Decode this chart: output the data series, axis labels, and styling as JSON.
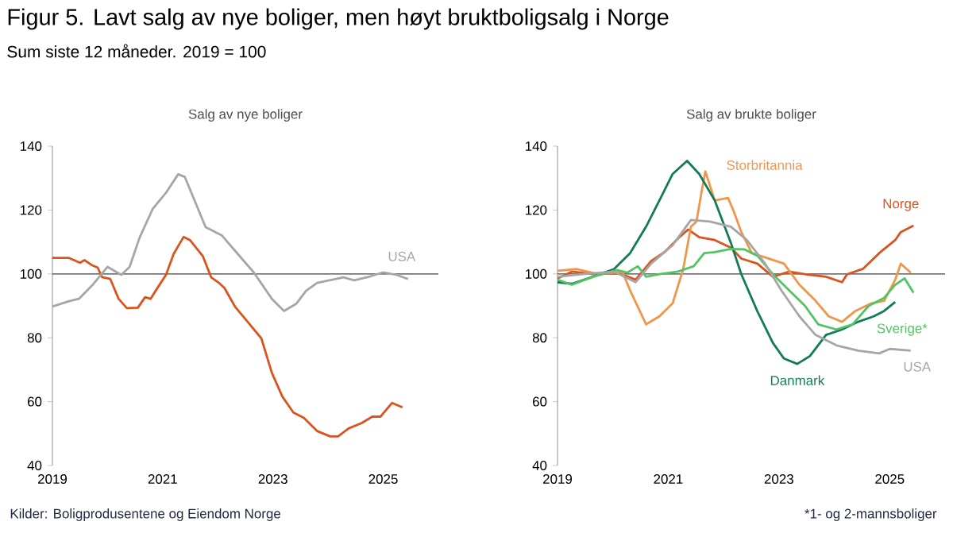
{
  "chart_data": [
    {
      "type": "line",
      "title": "Salg av nye boliger",
      "annotations": [
        "Figur 5. Lavt salg av nye boliger, men høyt bruktboligsalg i Norge",
        "Sum siste 12 måneder. 2019 = 100",
        "Kilder: Boligprodusentene og Eiendom Norge"
      ],
      "xlim": [
        2019,
        2026
      ],
      "xticks": [
        2019,
        2021,
        2023,
        2025
      ],
      "ylim": [
        40,
        140
      ],
      "yticks": [
        40,
        60,
        80,
        100,
        120,
        140
      ],
      "ref_lines": [
        {
          "axis": "y",
          "value": 100,
          "color": "#404040"
        }
      ],
      "series": [
        {
          "color": "#d9541e",
          "x": [
            2019.0,
            2019.3,
            2019.5,
            2019.58,
            2019.72,
            2019.82,
            2019.9,
            2020.05,
            2020.2,
            2020.35,
            2020.55,
            2020.68,
            2020.78,
            2020.92,
            2021.06,
            2021.2,
            2021.38,
            2021.5,
            2021.73,
            2021.88,
            2022.02,
            2022.12,
            2022.31,
            2022.55,
            2022.79,
            2022.98,
            2023.17,
            2023.37,
            2023.56,
            2023.8,
            2024.04,
            2024.18,
            2024.37,
            2024.61,
            2024.8,
            2024.95,
            2025.16,
            2025.35
          ],
          "values": [
            105,
            105,
            103.5,
            104.3,
            102.7,
            102,
            99,
            98.4,
            92.2,
            89.3,
            89.4,
            92.7,
            92.2,
            96,
            99.7,
            106.3,
            111.6,
            110.5,
            105.5,
            98.9,
            97.2,
            95.6,
            89.8,
            84.8,
            79.8,
            69,
            61.6,
            56.6,
            54.9,
            50.8,
            49.1,
            49.1,
            51.6,
            53.3,
            55.3,
            55.3,
            59.6,
            58.2
          ]
        },
        {
          "name": "USA",
          "color": "#a6a6a6",
          "x": [
            2019.0,
            2019.29,
            2019.48,
            2019.72,
            2020.0,
            2020.25,
            2020.4,
            2020.58,
            2020.82,
            2021.06,
            2021.28,
            2021.4,
            2021.78,
            2022.07,
            2022.36,
            2022.65,
            2022.98,
            2023.2,
            2023.42,
            2023.6,
            2023.8,
            2024.28,
            2024.47,
            2024.76,
            2025.0,
            2025.24,
            2025.45
          ],
          "values": [
            89.8,
            91.4,
            92.2,
            96.4,
            102.2,
            99.7,
            102.2,
            111.3,
            120.4,
            125.4,
            131.2,
            130.4,
            114.6,
            112.1,
            106.3,
            100.5,
            92.2,
            88.4,
            90.6,
            94.7,
            97.2,
            98.9,
            98,
            99.2,
            100.5,
            99.7,
            98.4
          ]
        }
      ]
    },
    {
      "type": "line",
      "title": "Salg av brukte boliger",
      "annotations": [
        "*1- og 2-mannsboliger"
      ],
      "xlim": [
        2019,
        2026
      ],
      "xticks": [
        2019,
        2021,
        2023,
        2025
      ],
      "ylim": [
        40,
        140
      ],
      "yticks": [
        40,
        60,
        80,
        100,
        120,
        140
      ],
      "ref_lines": [
        {
          "axis": "y",
          "value": 100,
          "color": "#404040"
        }
      ],
      "series": [
        {
          "name": "Norge",
          "color": "#d9541e",
          "x": [
            2019.0,
            2019.26,
            2019.64,
            2020.12,
            2020.41,
            2020.69,
            2020.93,
            2021.22,
            2021.36,
            2021.56,
            2021.84,
            2022.13,
            2022.32,
            2022.61,
            2022.89,
            2023.18,
            2023.47,
            2023.85,
            2024.14,
            2024.23,
            2024.52,
            2024.81,
            2025.1,
            2025.2,
            2025.43
          ],
          "values": [
            98.6,
            100.7,
            99.9,
            100.2,
            98.2,
            104,
            106.8,
            111.8,
            113.9,
            111.5,
            110.6,
            108.2,
            104.8,
            103.2,
            99.1,
            100.7,
            99.9,
            99.1,
            97.4,
            99.9,
            101.6,
            106.5,
            110.6,
            113.1,
            115.1
          ]
        },
        {
          "name": "Storbritannia",
          "color": "#f0964b",
          "x": [
            2019.0,
            2019.35,
            2019.74,
            2020.17,
            2020.31,
            2020.6,
            2020.84,
            2021.08,
            2021.27,
            2021.41,
            2021.51,
            2021.6,
            2021.67,
            2021.84,
            2022.08,
            2022.18,
            2022.32,
            2022.51,
            2022.8,
            2023.09,
            2023.37,
            2023.66,
            2023.9,
            2024.14,
            2024.38,
            2024.67,
            2024.9,
            2025.1,
            2025.2,
            2025.38
          ],
          "values": [
            101,
            101.5,
            99.9,
            100.7,
            94.9,
            84.2,
            86.7,
            90.8,
            101.5,
            114.8,
            116.4,
            125.5,
            132.1,
            123,
            123.8,
            119.7,
            113.1,
            106.5,
            104.9,
            103.2,
            96.6,
            91.6,
            86.7,
            85,
            88.4,
            90.8,
            91.6,
            98.2,
            103.2,
            100.4
          ]
        },
        {
          "name": "Danmark",
          "color": "#137a5a",
          "x": [
            2019.0,
            2019.26,
            2019.64,
            2020.02,
            2020.31,
            2020.6,
            2020.84,
            2021.08,
            2021.34,
            2021.56,
            2021.84,
            2022.13,
            2022.32,
            2022.61,
            2022.89,
            2023.09,
            2023.33,
            2023.56,
            2023.85,
            2024.14,
            2024.43,
            2024.71,
            2024.9,
            2025.1
          ],
          "values": [
            97.4,
            96.9,
            99.1,
            101.5,
            106.5,
            114.8,
            123,
            131.3,
            135.4,
            131.3,
            123,
            109.8,
            99.9,
            88.3,
            78.4,
            73.5,
            71.8,
            74.3,
            80.9,
            82.6,
            85,
            86.7,
            88.4,
            91.2
          ]
        },
        {
          "name": "Sverige*",
          "color": "#52c462",
          "x": [
            2019.0,
            2019.26,
            2019.64,
            2020.07,
            2020.26,
            2020.45,
            2020.6,
            2020.84,
            2021.17,
            2021.46,
            2021.65,
            2021.84,
            2022.13,
            2022.37,
            2022.61,
            2022.89,
            2023.18,
            2023.47,
            2023.71,
            2024.04,
            2024.33,
            2024.62,
            2024.9,
            2025.1,
            2025.27,
            2025.43
          ],
          "values": [
            98.2,
            96.6,
            99.1,
            101.2,
            100.4,
            102.4,
            99.1,
            99.9,
            100.7,
            102.4,
            106.5,
            106.8,
            107.8,
            107.7,
            105.7,
            99.9,
            94.9,
            90,
            84.2,
            82.6,
            84.2,
            90,
            92.5,
            96.6,
            98.6,
            94.1
          ]
        },
        {
          "name": "USA",
          "color": "#a6a6a6",
          "x": [
            2019.0,
            2019.45,
            2020.02,
            2020.41,
            2020.69,
            2021.08,
            2021.41,
            2021.75,
            2022.13,
            2022.42,
            2022.75,
            2023.04,
            2023.37,
            2023.66,
            2024.04,
            2024.43,
            2024.81,
            2025.0,
            2025.38
          ],
          "values": [
            99.1,
            99.9,
            100.7,
            97.4,
            103.2,
            109,
            116.9,
            116.4,
            114.8,
            110.6,
            103.2,
            94.9,
            86.7,
            80.9,
            77.6,
            76,
            75.1,
            76.5,
            76
          ]
        }
      ]
    }
  ]
}
